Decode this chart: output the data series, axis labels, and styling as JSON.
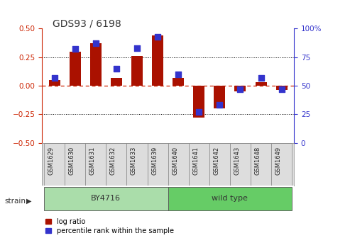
{
  "title": "GDS93 / 6198",
  "samples": [
    "GSM1629",
    "GSM1630",
    "GSM1631",
    "GSM1632",
    "GSM1633",
    "GSM1639",
    "GSM1640",
    "GSM1641",
    "GSM1642",
    "GSM1643",
    "GSM1648",
    "GSM1649"
  ],
  "log_ratio": [
    0.05,
    0.3,
    0.37,
    0.07,
    0.26,
    0.44,
    0.07,
    -0.28,
    -0.2,
    -0.05,
    0.03,
    -0.04
  ],
  "percentile": [
    57,
    82,
    87,
    65,
    83,
    93,
    60,
    27,
    33,
    47,
    57,
    47
  ],
  "bar_color": "#aa1100",
  "dot_color": "#3333cc",
  "ylim_left": [
    -0.5,
    0.5
  ],
  "ylim_right": [
    0,
    100
  ],
  "yticks_left": [
    -0.5,
    -0.25,
    0.0,
    0.25,
    0.5
  ],
  "yticks_right": [
    0,
    25,
    50,
    75,
    100
  ],
  "strain_groups": [
    {
      "label": "BY4716",
      "start": 0,
      "end": 6,
      "color": "#aaddaa"
    },
    {
      "label": "wild type",
      "start": 6,
      "end": 12,
      "color": "#66cc66"
    }
  ],
  "strain_label": "strain",
  "legend_items": [
    {
      "label": "log ratio",
      "color": "#aa1100"
    },
    {
      "label": "percentile rank within the sample",
      "color": "#3333cc"
    }
  ],
  "bar_width": 0.55,
  "dot_size": 28,
  "bg_color": "#ffffff",
  "left_axis_color": "#cc2200",
  "right_axis_color": "#3333cc",
  "zero_dashed_color": "#cc2200"
}
